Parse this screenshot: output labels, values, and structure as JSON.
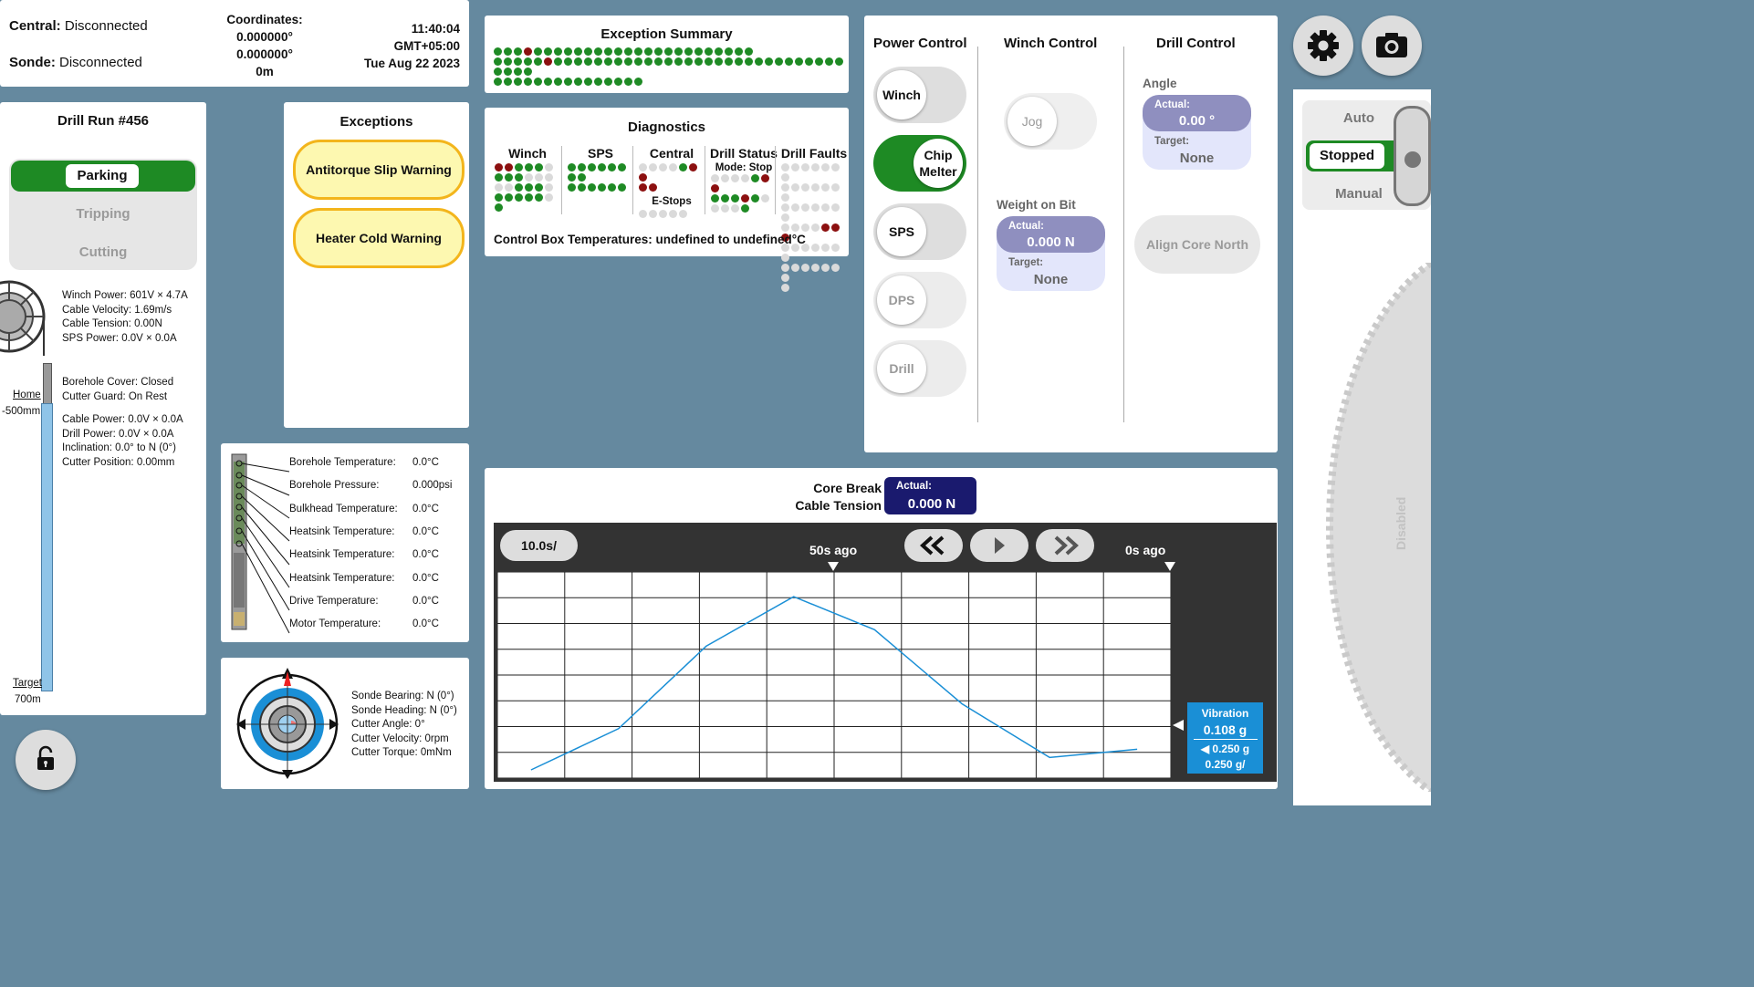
{
  "status": {
    "central_label": "Central:",
    "central_value": "Disconnected",
    "sonde_label": "Sonde:",
    "sonde_value": "Disconnected",
    "coord_label": "Coordinates:",
    "lat": "0.000000°",
    "lon": "0.000000°",
    "alt": "0m",
    "time": "11:40:04",
    "tz": "GMT+05:00",
    "date": "Tue Aug 22 2023"
  },
  "drill_run": {
    "title": "Drill Run #456",
    "modes": [
      "Parking",
      "Tripping",
      "Cutting"
    ],
    "active_mode": "Parking",
    "winch_info": [
      "Winch Power:  601V ×  4.7A",
      "Cable Velocity:  1.69m/s",
      "Cable Tension: 0.00N",
      "SPS Power:  0.0V ×  0.0A"
    ],
    "cover_info": [
      "Borehole Cover: Closed",
      "Cutter Guard: On Rest"
    ],
    "drill_info": [
      "Cable Power:  0.0V ×  0.0A",
      "Drill Power:  0.0V ×  0.0A",
      "Inclination:  0.0° to N (0°)",
      "Cutter Position:  0.00mm"
    ],
    "home_label": "Home",
    "home_depth": "-500mm",
    "target_label": "Target",
    "target_depth": "700m"
  },
  "exceptions": {
    "title": "Exceptions",
    "items": [
      "Antitorque Slip Warning",
      "Heater Cold Warning"
    ]
  },
  "exception_summary": {
    "title": "Exception Summary",
    "rows": [
      "gggrgggggggggggggggggggggg",
      "gggggrggggggggggggggggggggggggggggggggg",
      "ggggggggggggggg"
    ]
  },
  "diagnostics": {
    "title": "Diagnostics",
    "columns": [
      {
        "label": "Winch",
        "rows": [
          "rrggge",
          "gggeee",
          "eeggge",
          "ggggge",
          "g"
        ]
      },
      {
        "label": "SPS",
        "rows": [
          "gggggggg",
          "gggggg"
        ]
      },
      {
        "label": "Central",
        "rows": [
          "eeeegrr",
          "rr"
        ],
        "sub": "E-Stops",
        "sub_rows": [
          "eeeee"
        ]
      },
      {
        "label": "Drill Status",
        "sub": "Mode: Stop",
        "rows": [
          "eeeegrr",
          "gggrge",
          "eeeg"
        ]
      },
      {
        "label": "Drill Faults",
        "rows": [
          "eeeeeee",
          "eeeeeee",
          "eeeeeee",
          "eeeerrr",
          "eeeeeee",
          "eeeeeee",
          "e"
        ]
      }
    ],
    "footer": "Control Box Temperatures: undefined to undefined°C"
  },
  "sensors": [
    {
      "label": "Borehole Temperature:",
      "value": "0.0°C"
    },
    {
      "label": "Borehole Pressure:",
      "value": "0.000psi"
    },
    {
      "label": "Bulkhead Temperature:",
      "value": "0.0°C"
    },
    {
      "label": "Heatsink Temperature:",
      "value": "0.0°C"
    },
    {
      "label": "Heatsink Temperature:",
      "value": "0.0°C"
    },
    {
      "label": "Heatsink Temperature:",
      "value": "0.0°C"
    },
    {
      "label": "Drive Temperature:",
      "value": "0.0°C"
    },
    {
      "label": "Motor Temperature:",
      "value": "0.0°C"
    }
  ],
  "compass": {
    "lines": [
      "Sonde Bearing: N (0°)",
      "Sonde Heading: N (0°)",
      "Cutter Angle: 0°",
      "Cutter Velocity: 0rpm",
      "Cutter Torque: 0mNm"
    ]
  },
  "power_control": {
    "title": "Power Control",
    "items": [
      {
        "label": "Winch",
        "state": "off"
      },
      {
        "label": "Chip Melter",
        "state": "on"
      },
      {
        "label": "SPS",
        "state": "off"
      },
      {
        "label": "DPS",
        "state": "disabled"
      },
      {
        "label": "Drill",
        "state": "disabled"
      }
    ]
  },
  "winch_control": {
    "title": "Winch Control",
    "jog": "Jog",
    "wob_title": "Weight on Bit",
    "actual_label": "Actual:",
    "actual_value": "0.000 N",
    "target_label": "Target:",
    "target_value": "None"
  },
  "drill_control": {
    "title": "Drill Control",
    "angle_title": "Angle",
    "actual_label": "Actual:",
    "actual_value": "0.00 °",
    "target_label": "Target:",
    "target_value": "None",
    "align": "Align Core North"
  },
  "mode_switch": {
    "modes": [
      "Auto",
      "Stopped",
      "Manual"
    ],
    "active": "Stopped",
    "disabled_label": "Disabled"
  },
  "chart_data": {
    "type": "line",
    "title": "Core Break Cable Tension",
    "title_line1": "Core Break",
    "title_line2": "Cable Tension",
    "actual_label": "Actual:",
    "actual_value": "0.000 N",
    "time_scale": "10.0s/",
    "time_labels": [
      "50s ago",
      "0s ago"
    ],
    "xlim": [
      -100,
      0
    ],
    "ylim": [
      0,
      0.25
    ],
    "grid": true,
    "series": [
      {
        "name": "Vibration",
        "x": [
          -95,
          -82,
          -69,
          -56,
          -44,
          -31,
          -18,
          -5
        ],
        "y": [
          0.01,
          0.06,
          0.16,
          0.22,
          0.18,
          0.09,
          0.025,
          0.035
        ]
      }
    ],
    "legend": {
      "name": "Vibration",
      "value": "0.108 g",
      "range": "◀  0.250 g",
      "scale": "0.250 g/"
    }
  },
  "colors": {
    "background": "#65899f",
    "green": "#1e8a24",
    "red": "#8c1010",
    "warning_fill": "#fdf8b0",
    "warning_border": "#f3b51c",
    "chart_line": "#1a8fd6"
  }
}
